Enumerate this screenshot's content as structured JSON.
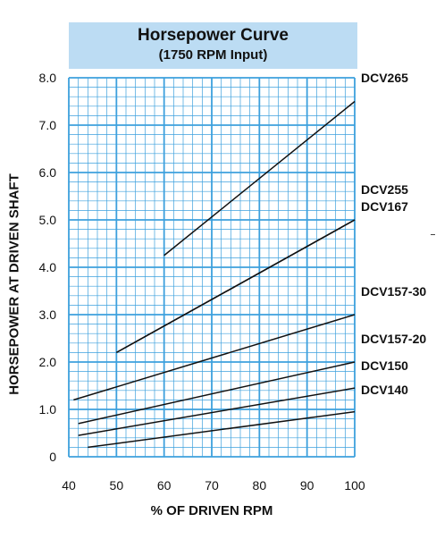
{
  "chart_data": {
    "type": "line",
    "title": "Horsepower Curve",
    "subtitle": "(1750 RPM Input)",
    "xlabel": "% OF DRIVEN RPM",
    "ylabel": "HORSEPOWER AT DRIVEN SHAFT",
    "xlim": [
      40,
      100
    ],
    "ylim": [
      0,
      8
    ],
    "x_ticks": [
      "40",
      "50",
      "60",
      "70",
      "80",
      "90",
      "100"
    ],
    "y_ticks": [
      "0",
      "1.0",
      "2.0",
      "3.0",
      "4.0",
      "5.0",
      "6.0",
      "7.0",
      "8.0"
    ],
    "grid": true,
    "series": [
      {
        "name": "DCV265",
        "x": [
          60,
          100
        ],
        "y": [
          4.25,
          7.5
        ]
      },
      {
        "name": "DCV255",
        "x": [
          50,
          100
        ],
        "y": [
          2.2,
          5.0
        ]
      },
      {
        "name": "DCV167",
        "x": [
          50,
          100
        ],
        "y": [
          2.2,
          5.0
        ]
      },
      {
        "name": "DCV157-30",
        "x": [
          41,
          100
        ],
        "y": [
          1.2,
          3.0
        ]
      },
      {
        "name": "DCV157-20",
        "x": [
          42,
          100
        ],
        "y": [
          0.7,
          2.0
        ]
      },
      {
        "name": "DCV150",
        "x": [
          42,
          100
        ],
        "y": [
          0.45,
          1.45
        ]
      },
      {
        "name": "DCV140",
        "x": [
          44,
          100
        ],
        "y": [
          0.2,
          0.95
        ]
      }
    ]
  }
}
